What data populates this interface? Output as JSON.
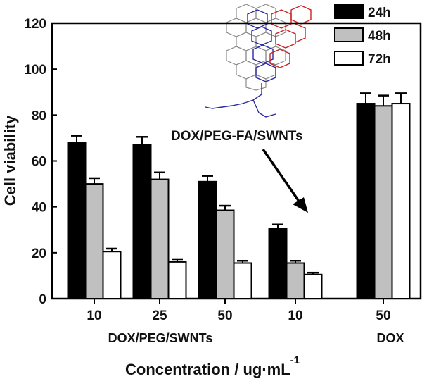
{
  "chart_data": {
    "type": "bar",
    "title": "",
    "ylabel": "Cell  viability",
    "xlabel": "Concentration / ug·mL",
    "xlabel_superscript": "-1",
    "ylim": [
      0,
      120
    ],
    "yticks": [
      0,
      20,
      40,
      60,
      80,
      100,
      120
    ],
    "categories": [
      "10",
      "25",
      "50",
      "10",
      "50"
    ],
    "category_groups": [
      {
        "label": "DOX/PEG/SWNTs",
        "categories": [
          0,
          1,
          2
        ]
      },
      {
        "label": "DOX",
        "categories": [
          4
        ]
      }
    ],
    "series": [
      {
        "name": "24h",
        "color": "#000000",
        "values": [
          68,
          67,
          51,
          30.5,
          85
        ],
        "errors": [
          3,
          3.5,
          2.5,
          1.8,
          4.5
        ]
      },
      {
        "name": "48h",
        "color": "#c0c0c0",
        "values": [
          50,
          52,
          38.5,
          15.5,
          84
        ],
        "errors": [
          2.5,
          3,
          2,
          1,
          4.5
        ]
      },
      {
        "name": "72h",
        "color": "#ffffff",
        "values": [
          20.5,
          16,
          15.5,
          10.5,
          85
        ],
        "errors": [
          1.3,
          1.2,
          1,
          0.8,
          4.5
        ]
      }
    ],
    "legend_position": "top-right",
    "annotations": [
      {
        "text": "DOX/PEG-FA/SWNTs",
        "target_category": 3
      }
    ]
  }
}
